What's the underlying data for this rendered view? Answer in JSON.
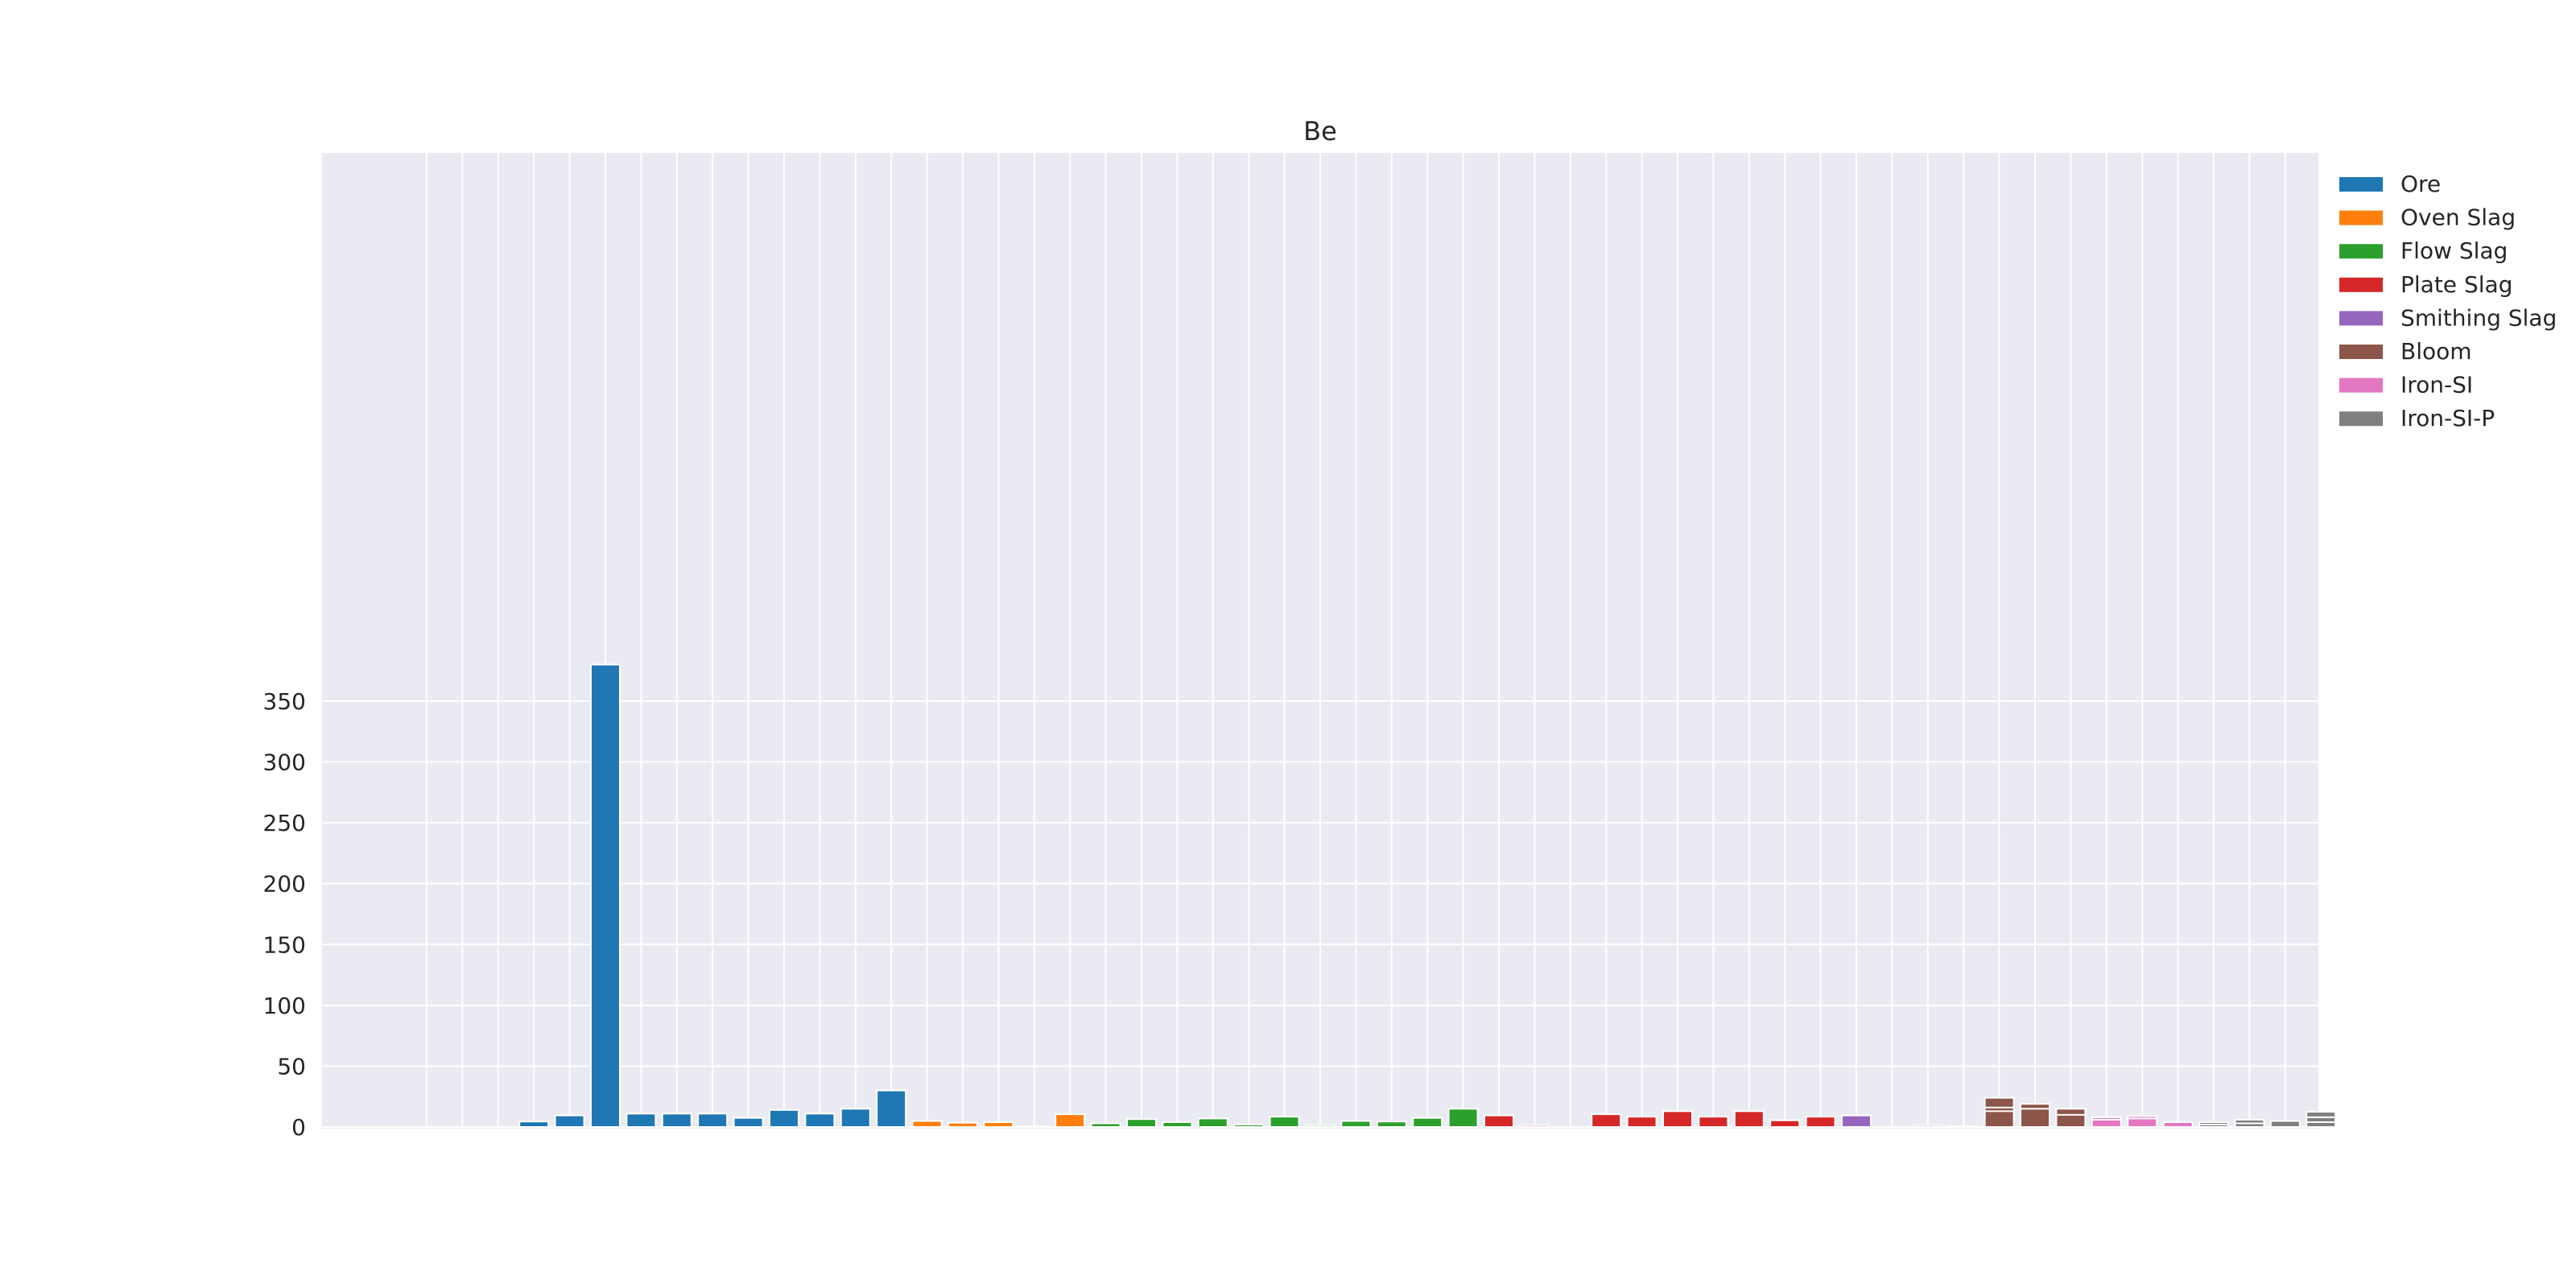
{
  "chart_data": {
    "type": "bar",
    "title": "Be",
    "xlabel": "",
    "ylabel": "",
    "ylim": [
      0,
      400
    ],
    "yticks": [
      0,
      50,
      100,
      150,
      200,
      250,
      300,
      350
    ],
    "grid": true,
    "legend_position": "outside-top-right",
    "series": [
      {
        "name": "Ore",
        "color": "#1f77b4",
        "bars": [
          [
            3,
            [
              4.5
            ]
          ],
          [
            4,
            [
              9.5
            ]
          ],
          [
            5,
            [
              380
            ]
          ],
          [
            6,
            [
              11
            ]
          ],
          [
            7,
            [
              11
            ]
          ],
          [
            8,
            [
              11
            ]
          ],
          [
            9,
            [
              7.5
            ]
          ],
          [
            10,
            [
              14
            ]
          ],
          [
            11,
            [
              11
            ]
          ],
          [
            12,
            [
              15
            ]
          ],
          [
            13,
            [
              30
            ]
          ]
        ]
      },
      {
        "name": "Oven Slag",
        "color": "#ff7f0e",
        "bars": [
          [
            14,
            [
              5
            ]
          ],
          [
            15,
            [
              3.5
            ]
          ],
          [
            16,
            [
              4
            ]
          ],
          [
            17,
            [
              0.5
            ]
          ],
          [
            18,
            [
              10.5
            ]
          ]
        ]
      },
      {
        "name": "Flow Slag",
        "color": "#2ca02c",
        "bars": [
          [
            19,
            [
              3
            ]
          ],
          [
            20,
            [
              6.5
            ]
          ],
          [
            21,
            [
              4
            ]
          ],
          [
            22,
            [
              7
            ]
          ],
          [
            23,
            [
              2
            ]
          ],
          [
            24,
            [
              8.5
            ]
          ],
          [
            25,
            [
              1.5
            ]
          ],
          [
            26,
            [
              5
            ]
          ],
          [
            27,
            [
              4.5
            ]
          ],
          [
            28,
            [
              7.5
            ]
          ],
          [
            29,
            [
              15
            ]
          ]
        ]
      },
      {
        "name": "Plate Slag",
        "color": "#d62728",
        "bars": [
          [
            30,
            [
              9.5
            ]
          ],
          [
            31,
            [
              1.5
            ]
          ],
          [
            33,
            [
              10.5
            ]
          ],
          [
            34,
            [
              8.5
            ]
          ],
          [
            35,
            [
              13
            ]
          ],
          [
            36,
            [
              8.5
            ]
          ],
          [
            37,
            [
              13
            ]
          ],
          [
            38,
            [
              5.5
            ]
          ],
          [
            39,
            [
              8.5
            ]
          ]
        ]
      },
      {
        "name": "Smithing Slag",
        "color": "#9467bd",
        "bars": [
          [
            40,
            [
              9.5
            ]
          ],
          [
            42,
            [
              1.5
            ]
          ],
          [
            43,
            [
              0.5
            ]
          ]
        ]
      },
      {
        "name": "Bloom",
        "color": "#8c564b",
        "bars": [
          [
            44,
            [
              24,
              16,
              13
            ]
          ],
          [
            45,
            [
              19,
              15
            ]
          ],
          [
            46,
            [
              15,
              10
            ]
          ]
        ]
      },
      {
        "name": "Iron-SI",
        "color": "#e377c2",
        "bars": [
          [
            47,
            [
              8,
              6
            ]
          ],
          [
            48,
            [
              9,
              7
            ]
          ],
          [
            49,
            [
              4
            ]
          ]
        ]
      },
      {
        "name": "Iron-SI-P",
        "color": "#7f7f7f",
        "bars": [
          [
            50,
            [
              4,
              2
            ]
          ],
          [
            51,
            [
              6,
              3
            ]
          ],
          [
            52,
            [
              5
            ]
          ],
          [
            53,
            [
              12.5,
              8,
              4
            ]
          ]
        ]
      }
    ]
  }
}
